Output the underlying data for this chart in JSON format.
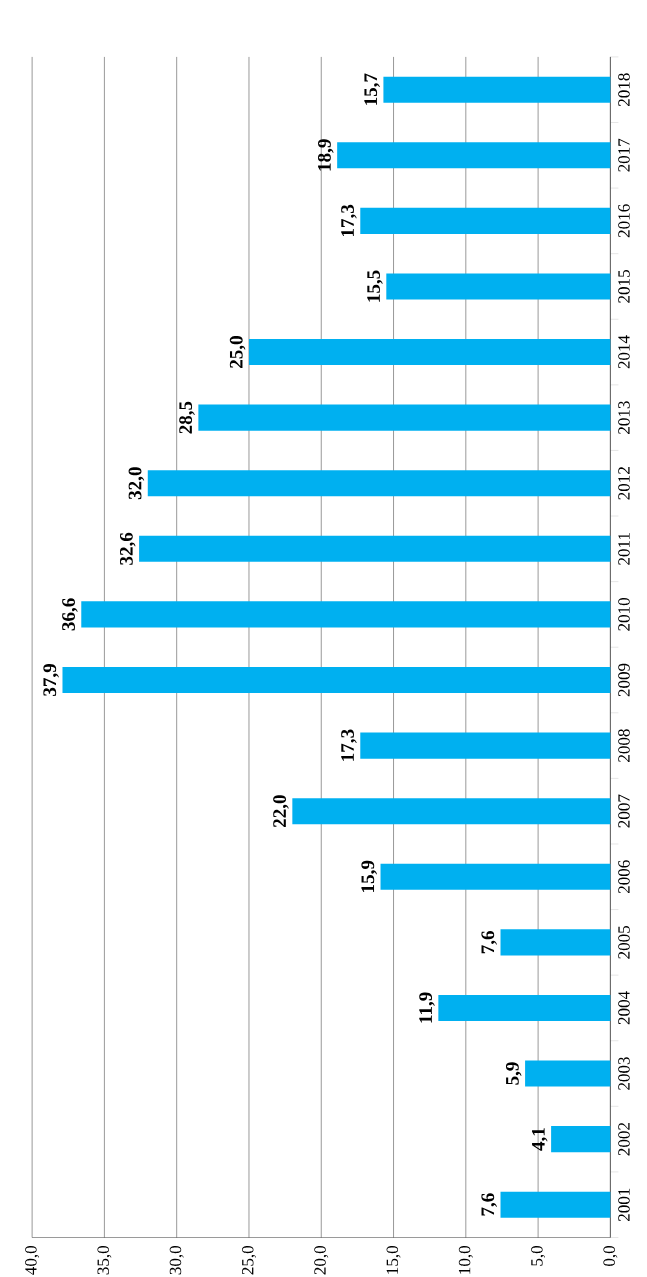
{
  "chart_data": {
    "type": "bar",
    "orientation": "horizontal",
    "categories": [
      "2018",
      "2017",
      "2016",
      "2015",
      "2014",
      "2013",
      "2012",
      "2011",
      "2010",
      "2009",
      "2008",
      "2007",
      "2006",
      "2005",
      "2004",
      "2003",
      "2002",
      "2001"
    ],
    "values": [
      15.7,
      18.9,
      17.3,
      15.5,
      25.0,
      28.5,
      32.0,
      32.6,
      36.6,
      37.9,
      17.3,
      22.0,
      15.9,
      7.6,
      11.9,
      5.9,
      4.1,
      7.6
    ],
    "value_labels": [
      "15,7",
      "18,9",
      "17,3",
      "15,5",
      "25,0",
      "28,5",
      "32,0",
      "32,6",
      "36,6",
      "37,9",
      "17,3",
      "22,0",
      "15,9",
      "7,6",
      "11,9",
      "5,9",
      "4,1",
      "7,6"
    ],
    "color": "#00b0f0",
    "xlim": [
      40,
      0
    ],
    "xticks": [
      {
        "value": 40,
        "label": "40,0"
      },
      {
        "value": 35,
        "label": "35,0"
      },
      {
        "value": 30,
        "label": "30,0"
      },
      {
        "value": 25,
        "label": "25,0"
      },
      {
        "value": 20,
        "label": "20,0"
      },
      {
        "value": 15,
        "label": "15,0"
      },
      {
        "value": 10,
        "label": "10,0"
      },
      {
        "value": 5,
        "label": "5,0"
      },
      {
        "value": 0,
        "label": "0,0"
      }
    ],
    "grid": "x"
  }
}
